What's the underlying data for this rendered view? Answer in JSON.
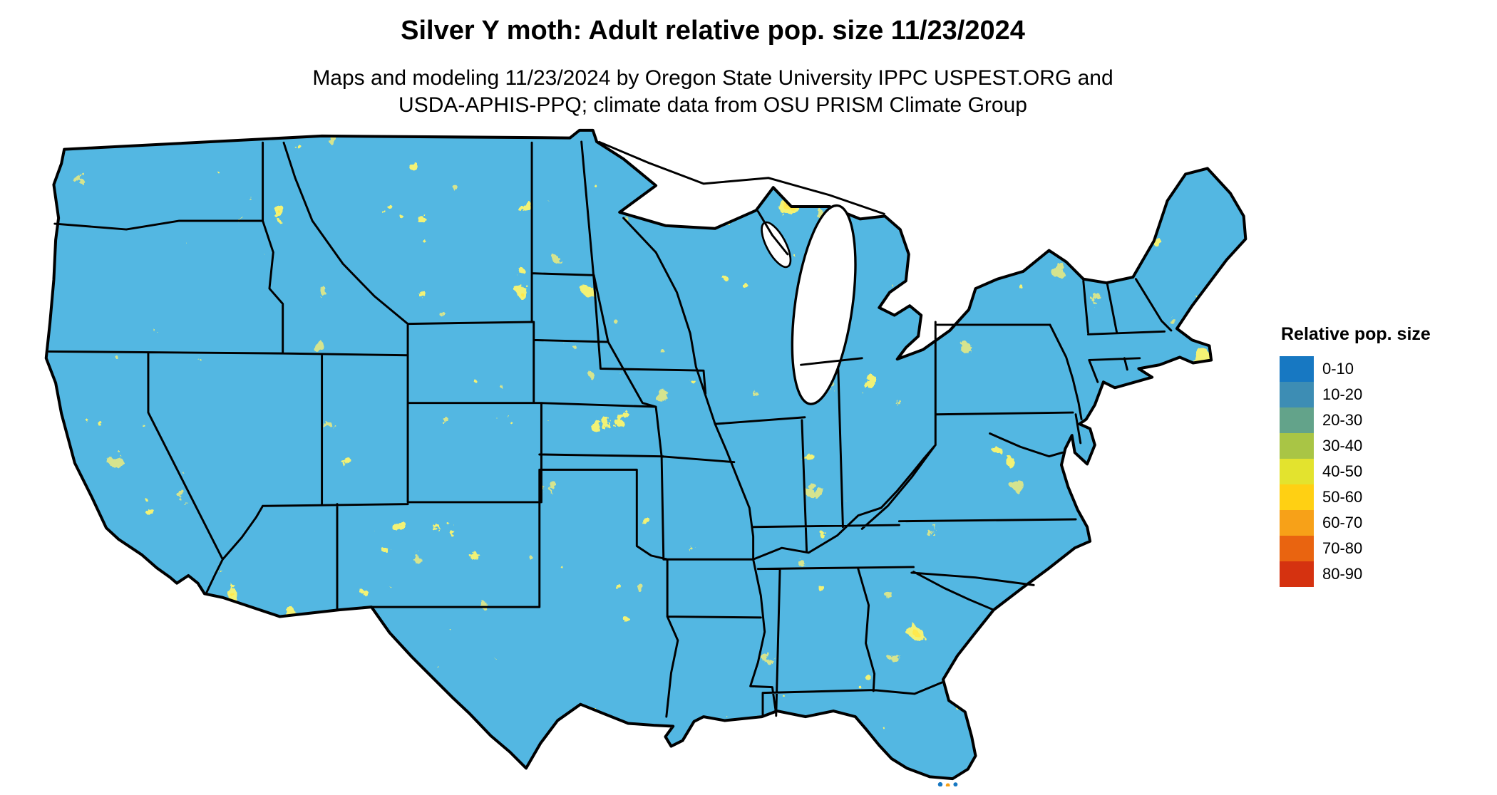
{
  "title": "Silver Y moth: Adult relative pop. size 11/23/2024",
  "subtitle_line1": "Maps and modeling 11/23/2024 by Oregon State University IPPC USPEST.ORG and",
  "subtitle_line2": "USDA-APHIS-PPQ; climate data from OSU PRISM Climate Group",
  "map": {
    "name": "Contiguous United States relative population raster",
    "base_color": "#1778c2",
    "border_color": "#000000"
  },
  "legend": {
    "title": "Relative pop. size",
    "items": [
      {
        "label": "0-10",
        "color": "#1778c2"
      },
      {
        "label": "10-20",
        "color": "#3d8db4"
      },
      {
        "label": "20-30",
        "color": "#63a38a"
      },
      {
        "label": "30-40",
        "color": "#a9c545"
      },
      {
        "label": "40-50",
        "color": "#e3e32e"
      },
      {
        "label": "50-60",
        "color": "#ffd013"
      },
      {
        "label": "60-70",
        "color": "#f7a118"
      },
      {
        "label": "70-80",
        "color": "#e96410"
      },
      {
        "label": "80-90",
        "color": "#d53210"
      }
    ]
  }
}
